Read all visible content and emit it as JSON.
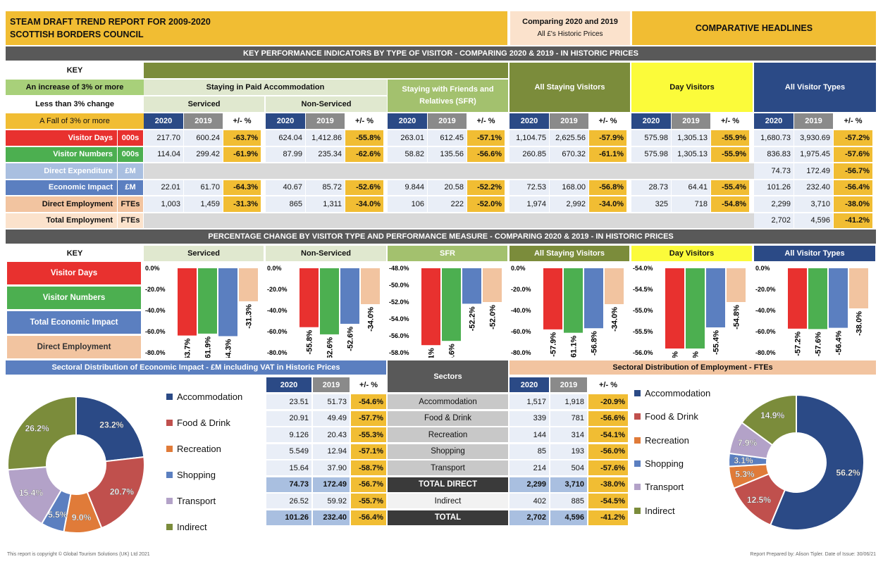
{
  "header": {
    "title1": "STEAM DRAFT TREND REPORT FOR 2009-2020",
    "title2": "SCOTTISH BORDERS COUNCIL",
    "compare": "Comparing 2020 and 2019",
    "prices": "All £'s Historic Prices",
    "headlines": "COMPARATIVE HEADLINES"
  },
  "kpi": {
    "banner": "KEY PERFORMANCE INDICATORS BY TYPE OF VISITOR - COMPARING 2020 & 2019 - IN HISTORIC PRICES",
    "key": "KEY",
    "key_up": "An increase of 3% or more",
    "key_same": "Less than 3% change",
    "key_down": "A Fall of 3% or more",
    "paid": "Staying in Paid Accommodation",
    "serviced": "Serviced",
    "nonserviced": "Non-Serviced",
    "sfr": "Staying with Friends and Relatives (SFR)",
    "staying": "All Staying Visitors",
    "day": "Day Visitors",
    "all": "All Visitor Types",
    "y2020": "2020",
    "y2019": "2019",
    "pm": "+/- %",
    "rows": [
      {
        "label": "Visitor Days",
        "unit": "000s",
        "vals": [
          [
            "217.70",
            "600.24",
            "-63.7%"
          ],
          [
            "624.04",
            "1,412.86",
            "-55.8%"
          ],
          [
            "263.01",
            "612.45",
            "-57.1%"
          ],
          [
            "1,104.75",
            "2,625.56",
            "-57.9%"
          ],
          [
            "575.98",
            "1,305.13",
            "-55.9%"
          ],
          [
            "1,680.73",
            "3,930.69",
            "-57.2%"
          ]
        ]
      },
      {
        "label": "Visitor Numbers",
        "unit": "000s",
        "vals": [
          [
            "114.04",
            "299.42",
            "-61.9%"
          ],
          [
            "87.99",
            "235.34",
            "-62.6%"
          ],
          [
            "58.82",
            "135.56",
            "-56.6%"
          ],
          [
            "260.85",
            "670.32",
            "-61.1%"
          ],
          [
            "575.98",
            "1,305.13",
            "-55.9%"
          ],
          [
            "836.83",
            "1,975.45",
            "-57.6%"
          ]
        ]
      },
      {
        "label": "Direct Expenditure",
        "unit": "£M",
        "vals": [
          null,
          null,
          null,
          null,
          null,
          [
            "74.73",
            "172.49",
            "-56.7%"
          ]
        ]
      },
      {
        "label": "Economic Impact",
        "unit": "£M",
        "vals": [
          [
            "22.01",
            "61.70",
            "-64.3%"
          ],
          [
            "40.67",
            "85.72",
            "-52.6%"
          ],
          [
            "9.844",
            "20.58",
            "-52.2%"
          ],
          [
            "72.53",
            "168.00",
            "-56.8%"
          ],
          [
            "28.73",
            "64.41",
            "-55.4%"
          ],
          [
            "101.26",
            "232.40",
            "-56.4%"
          ]
        ]
      },
      {
        "label": "Direct Employment",
        "unit": "FTEs",
        "vals": [
          [
            "1,003",
            "1,459",
            "-31.3%"
          ],
          [
            "865",
            "1,311",
            "-34.0%"
          ],
          [
            "106",
            "222",
            "-52.0%"
          ],
          [
            "1,974",
            "2,992",
            "-34.0%"
          ],
          [
            "325",
            "718",
            "-54.8%"
          ],
          [
            "2,299",
            "3,710",
            "-38.0%"
          ]
        ]
      },
      {
        "label": "Total Employment",
        "unit": "FTEs",
        "vals": [
          null,
          null,
          null,
          null,
          null,
          [
            "2,702",
            "4,596",
            "-41.2%"
          ]
        ]
      }
    ]
  },
  "pct": {
    "banner": "PERCENTAGE CHANGE BY VISITOR TYPE AND PERFORMANCE MEASURE - COMPARING 2020 & 2019 - IN HISTORIC PRICES",
    "key": "KEY",
    "titles": [
      "Serviced",
      "Non-Serviced",
      "SFR",
      "All Staying Visitors",
      "Day Visitors",
      "All Visitor Types"
    ],
    "legend": [
      "Visitor Days",
      "Visitor Numbers",
      "Total Economic Impact",
      "Direct Employment"
    ]
  },
  "sector": {
    "econ_title": "Sectoral Distribution of Economic Impact - £M including VAT in Historic Prices",
    "sectors_title": "Sectors",
    "emp_title": "Sectoral Distribution of Employment - FTEs",
    "y2020": "2020",
    "y2019": "2019",
    "pm": "+/- %",
    "rows": [
      {
        "name": "Accommodation",
        "econ": [
          "23.51",
          "51.73",
          "-54.6%"
        ],
        "emp": [
          "1,517",
          "1,918",
          "-20.9%"
        ]
      },
      {
        "name": "Food & Drink",
        "econ": [
          "20.91",
          "49.49",
          "-57.7%"
        ],
        "emp": [
          "339",
          "781",
          "-56.6%"
        ]
      },
      {
        "name": "Recreation",
        "econ": [
          "9.126",
          "20.43",
          "-55.3%"
        ],
        "emp": [
          "144",
          "314",
          "-54.1%"
        ]
      },
      {
        "name": "Shopping",
        "econ": [
          "5.549",
          "12.94",
          "-57.1%"
        ],
        "emp": [
          "85",
          "193",
          "-56.0%"
        ]
      },
      {
        "name": "Transport",
        "econ": [
          "15.64",
          "37.90",
          "-58.7%"
        ],
        "emp": [
          "214",
          "504",
          "-57.6%"
        ]
      },
      {
        "name": "TOTAL DIRECT",
        "econ": [
          "74.73",
          "172.49",
          "-56.7%"
        ],
        "emp": [
          "2,299",
          "3,710",
          "-38.0%"
        ]
      },
      {
        "name": "Indirect",
        "econ": [
          "26.52",
          "59.92",
          "-55.7%"
        ],
        "emp": [
          "402",
          "885",
          "-54.5%"
        ]
      },
      {
        "name": "TOTAL",
        "econ": [
          "101.26",
          "232.40",
          "-56.4%"
        ],
        "emp": [
          "2,702",
          "4,596",
          "-41.2%"
        ]
      }
    ],
    "legend": [
      "Accommodation",
      "Food & Drink",
      "Recreation",
      "Shopping",
      "Transport",
      "Indirect"
    ]
  },
  "footer": {
    "left": "This report is copyright © Global Tourism Solutions (UK) Ltd 2021",
    "right": "Report Prepared by: Alison Tipler. Date of Issue: 30/06/21"
  },
  "colors": {
    "red": "#e8312f",
    "green": "#4caf50",
    "blue": "#5b7fc0",
    "peach": "#f2c4a0",
    "gold": "#f1bd33",
    "olive": "#7b8c3b",
    "yellow": "#fbfb3a",
    "navy": "#2b4a86",
    "grey": "#595959"
  },
  "chart_data": [
    {
      "type": "bar",
      "title": "Serviced",
      "categories": [
        "Visitor Days",
        "Visitor Numbers",
        "Total Economic Impact",
        "Direct Employment"
      ],
      "values": [
        -63.7,
        -61.9,
        -64.3,
        -31.3
      ],
      "ylim": [
        -80,
        0
      ],
      "ticks": [
        0,
        -20,
        -40,
        -60,
        -80
      ],
      "labels": [
        "-63.7%",
        "-61.9%",
        "-64.3%",
        "-31.3%"
      ],
      "ticklabels": [
        "0.0%",
        "-20.0%",
        "-40.0%",
        "-60.0%",
        "-80.0%"
      ]
    },
    {
      "type": "bar",
      "title": "Non-Serviced",
      "categories": [
        "Visitor Days",
        "Visitor Numbers",
        "Total Economic Impact",
        "Direct Employment"
      ],
      "values": [
        -55.8,
        -62.6,
        -52.6,
        -34.0
      ],
      "ylim": [
        -80,
        0
      ],
      "ticks": [
        0,
        -20,
        -40,
        -60,
        -80
      ],
      "labels": [
        "-55.8%",
        "-62.6%",
        "-52.6%",
        "-34.0%"
      ],
      "ticklabels": [
        "0.0%",
        "-20.0%",
        "-40.0%",
        "-60.0%",
        "-80.0%"
      ]
    },
    {
      "type": "bar",
      "title": "SFR",
      "categories": [
        "Visitor Days",
        "Visitor Numbers",
        "Total Economic Impact",
        "Direct Employment"
      ],
      "values": [
        -57.1,
        -56.6,
        -52.2,
        -52.0
      ],
      "ylim": [
        -58,
        -48
      ],
      "ticks": [
        -48,
        -50,
        -52,
        -54,
        -56,
        -58
      ],
      "labels": [
        "-57.1%",
        "-56.6%",
        "-52.2%",
        "-52.0%"
      ],
      "ticklabels": [
        "-48.0%",
        "-50.0%",
        "-52.0%",
        "-54.0%",
        "-56.0%",
        "-58.0%"
      ]
    },
    {
      "type": "bar",
      "title": "All Staying Visitors",
      "categories": [
        "Visitor Days",
        "Visitor Numbers",
        "Total Economic Impact",
        "Direct Employment"
      ],
      "values": [
        -57.9,
        -61.1,
        -56.8,
        -34.0
      ],
      "ylim": [
        -80,
        0
      ],
      "ticks": [
        0,
        -20,
        -40,
        -60,
        -80
      ],
      "labels": [
        "-57.9%",
        "-61.1%",
        "-56.8%",
        "-34.0%"
      ],
      "ticklabels": [
        "0.0%",
        "-20.0%",
        "-40.0%",
        "-60.0%",
        "-80.0%"
      ]
    },
    {
      "type": "bar",
      "title": "Day Visitors",
      "categories": [
        "Visitor Days",
        "Visitor Numbers",
        "Total Economic Impact",
        "Direct Employment"
      ],
      "values": [
        -55.9,
        -55.9,
        -55.4,
        -54.8
      ],
      "ylim": [
        -56,
        -54
      ],
      "ticks": [
        -54,
        -54.5,
        -55,
        -55.5,
        -56
      ],
      "labels": [
        "-55.9%",
        "-55.9%",
        "-55.4%",
        "-54.8%"
      ],
      "ticklabels": [
        "-54.0%",
        "-54.5%",
        "-55.0%",
        "-55.5%",
        "-56.0%"
      ]
    },
    {
      "type": "bar",
      "title": "All Visitor Types",
      "categories": [
        "Visitor Days",
        "Visitor Numbers",
        "Total Economic Impact",
        "Direct Employment"
      ],
      "values": [
        -57.2,
        -57.6,
        -56.4,
        -38.0
      ],
      "ylim": [
        -80,
        0
      ],
      "ticks": [
        0,
        -20,
        -40,
        -60,
        -80
      ],
      "labels": [
        "-57.2%",
        "-57.6%",
        "-56.4%",
        "-38.0%"
      ],
      "ticklabels": [
        "0.0%",
        "-20.0%",
        "-40.0%",
        "-60.0%",
        "-80.0%"
      ]
    },
    {
      "type": "pie",
      "categories": [
        "Accommodation",
        "Food & Drink",
        "Recreation",
        "Shopping",
        "Transport",
        "Indirect"
      ],
      "values": [
        23.2,
        20.7,
        9.0,
        5.5,
        15.4,
        26.2
      ],
      "labels": [
        "23.2%",
        "20.7%",
        "9.0%",
        "5.5%",
        "15.4%",
        "26.2%"
      ]
    },
    {
      "type": "pie",
      "categories": [
        "Accommodation",
        "Food & Drink",
        "Recreation",
        "Shopping",
        "Transport",
        "Indirect"
      ],
      "values": [
        56.2,
        12.5,
        5.3,
        3.1,
        7.9,
        14.9
      ],
      "labels": [
        "56.2%",
        "12.5%",
        "5.3%",
        "3.1%",
        "7.9%",
        "14.9%"
      ]
    }
  ]
}
